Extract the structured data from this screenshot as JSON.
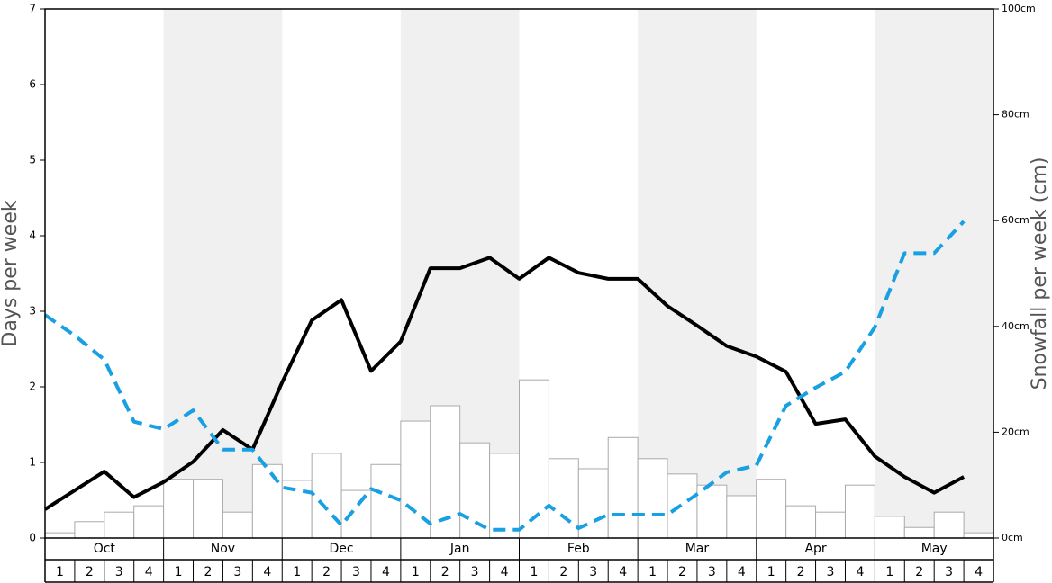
{
  "chart_data": {
    "type": "combo",
    "ylabel": "Days per week",
    "y2label": "Snowfall per week (cm)",
    "months": [
      "Oct",
      "Nov",
      "Dec",
      "Jan",
      "Feb",
      "Mar",
      "Apr",
      "May"
    ],
    "categories": [
      "1",
      "2",
      "3",
      "4",
      "1",
      "2",
      "3",
      "4",
      "1",
      "2",
      "3",
      "4",
      "1",
      "2",
      "3",
      "4",
      "1",
      "2",
      "3",
      "4",
      "1",
      "2",
      "3",
      "4",
      "1",
      "2",
      "3",
      "4",
      "1",
      "2",
      "3",
      "4"
    ],
    "ylim": [
      0,
      7
    ],
    "yticks": [
      0,
      1,
      2,
      3,
      4,
      5,
      6,
      7
    ],
    "y2lim": [
      0,
      100
    ],
    "y2ticks": [
      {
        "value": 0,
        "label": "0cm"
      },
      {
        "value": 20,
        "label": "20cm"
      },
      {
        "value": 40,
        "label": "40cm"
      },
      {
        "value": 60,
        "label": "60cm"
      },
      {
        "value": 80,
        "label": "80cm"
      },
      {
        "value": 100,
        "label": "100cm"
      }
    ],
    "series": [
      {
        "kind": "bar",
        "axis": "y2",
        "color": "#ffffff",
        "values": [
          1.0,
          3.1,
          4.9,
          6.1,
          11.1,
          11.1,
          4.9,
          13.9,
          10.9,
          16.0,
          9.0,
          13.9,
          22.1,
          25.0,
          18.0,
          16.0,
          29.9,
          15.0,
          13.1,
          19.0,
          15.0,
          12.1,
          10.0,
          8.0,
          11.1,
          6.1,
          4.9,
          10.0,
          4.1,
          2.0,
          4.9,
          1.0
        ]
      },
      {
        "kind": "line",
        "color": "#000000",
        "values": [
          0.38,
          0.63,
          0.88,
          0.54,
          0.74,
          1.01,
          1.43,
          1.17,
          2.06,
          2.88,
          3.15,
          2.21,
          2.6,
          3.57,
          3.57,
          3.71,
          3.43,
          3.71,
          3.51,
          3.43,
          3.43,
          3.07,
          2.81,
          2.54,
          2.4,
          2.2,
          1.51,
          1.57,
          1.08,
          0.81,
          0.6,
          0.81
        ]
      },
      {
        "kind": "dashed",
        "color": "#19a0e3",
        "values": [
          2.95,
          2.68,
          2.36,
          1.54,
          1.44,
          1.69,
          1.17,
          1.17,
          0.67,
          0.6,
          0.17,
          0.65,
          0.5,
          0.19,
          0.32,
          0.11,
          0.11,
          0.43,
          0.13,
          0.31,
          0.31,
          0.31,
          0.58,
          0.87,
          0.96,
          1.75,
          1.99,
          2.2,
          2.79,
          3.77,
          3.77,
          4.19
        ]
      }
    ]
  }
}
